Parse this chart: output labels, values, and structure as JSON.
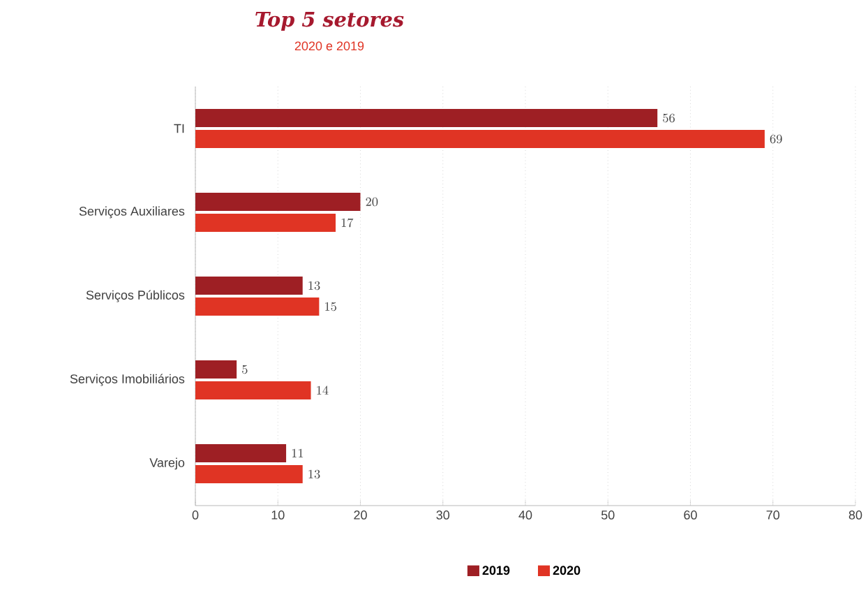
{
  "chart_data": {
    "type": "bar",
    "orientation": "horizontal",
    "title": "Top 5 setores",
    "subtitle": "2020 e 2019",
    "categories": [
      "TI",
      "Serviços Auxiliares",
      "Serviços Públicos",
      "Serviços Imobiliários",
      "Varejo"
    ],
    "series": [
      {
        "name": "2019",
        "color": "#9e1f24",
        "values": [
          56,
          20,
          13,
          5,
          11
        ]
      },
      {
        "name": "2020",
        "color": "#e03424",
        "values": [
          69,
          17,
          15,
          14,
          13
        ]
      }
    ],
    "xlim": [
      0,
      80
    ],
    "xticks": [
      0,
      10,
      20,
      30,
      40,
      50,
      60,
      70,
      80
    ],
    "grid": "x",
    "legend": "bottom",
    "data_labels": true
  }
}
